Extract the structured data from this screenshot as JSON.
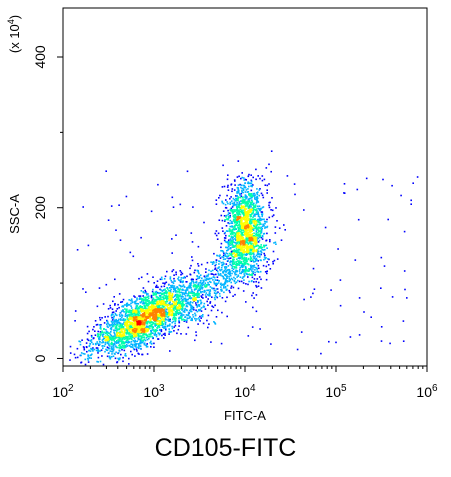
{
  "caption": "CD105-FITC",
  "chart_data": {
    "type": "scatter",
    "style": "density-colored dot plot (pseudocolor)",
    "x_axis": {
      "label": "FITC-A",
      "scale": "log",
      "range": [
        100,
        1000000
      ],
      "ticks": [
        {
          "value": 100,
          "base": "10",
          "exp": "2"
        },
        {
          "value": 1000,
          "base": "10",
          "exp": "3"
        },
        {
          "value": 10000,
          "base": "10",
          "exp": "4"
        },
        {
          "value": 100000,
          "base": "10",
          "exp": "5"
        },
        {
          "value": 1000000,
          "base": "10",
          "exp": "6"
        }
      ]
    },
    "y_axis": {
      "label": "SSC-A",
      "scale": "linear",
      "multiplier": {
        "prefix": "(x 10",
        "exp": "4",
        "suffix": ")"
      },
      "range": [
        -10,
        465
      ],
      "ticks": [
        {
          "value": 0,
          "label": "0"
        },
        {
          "value": 200,
          "label": "200"
        },
        {
          "value": 400,
          "label": "400"
        }
      ]
    },
    "grid": false,
    "density_colors": [
      "#0000ff",
      "#00b4ff",
      "#00ffaa",
      "#ffff00",
      "#ff8000",
      "#ff0000"
    ],
    "populations": [
      {
        "center_x": 800,
        "center_y": 55,
        "description": "dense low-FITC cluster"
      },
      {
        "center_x": 10000,
        "center_y": 170,
        "description": "FITC-positive cluster"
      }
    ]
  }
}
